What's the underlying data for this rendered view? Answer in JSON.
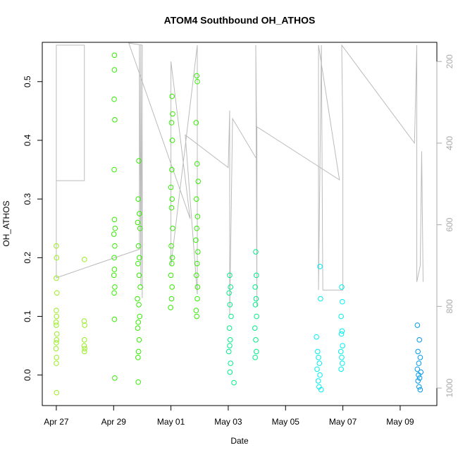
{
  "chart_data": {
    "type": "scatter",
    "title": "ATOM4 Southbound OH_ATHOS",
    "x_label": "Date",
    "y_label": "OH_ATHOS",
    "xlim": [
      -0.49,
      13.28
    ],
    "xticks": [
      {
        "value": 0,
        "label": "Apr 27"
      },
      {
        "value": 2,
        "label": "Apr 29"
      },
      {
        "value": 4,
        "label": "May 01"
      },
      {
        "value": 6,
        "label": "May 03"
      },
      {
        "value": 8,
        "label": "May 05"
      },
      {
        "value": 10,
        "label": "May 07"
      },
      {
        "value": 12,
        "label": "May 09"
      }
    ],
    "ylim": [
      -0.052,
      0.567
    ],
    "yticks": [
      {
        "value": 0,
        "label": "0.0"
      },
      0.1,
      0.2,
      0.3,
      0.4,
      0.5
    ],
    "y2lim": [
      1043,
      153
    ],
    "y2ticks": [
      200,
      400,
      600,
      800,
      1000
    ],
    "series": [
      {
        "color": "#99ee22",
        "x": [
          0,
          0.01,
          0,
          0.02,
          0,
          0.01,
          -0.01,
          0,
          0.02,
          0.01,
          0,
          -0.01,
          0.01,
          0,
          0.01,
          0.98,
          0.97,
          0.99,
          0.98,
          0.97,
          0.99,
          0.98
        ],
        "values": [
          0.22,
          0.2,
          0.165,
          0.14,
          0.11,
          0.1,
          0.09,
          0.085,
          0.07,
          0.06,
          0.055,
          0.045,
          0.03,
          0.02,
          -0.03,
          0.197,
          0.092,
          0.085,
          0.06,
          0.05,
          0.045,
          0.04
        ]
      },
      {
        "color": "#33ee00",
        "x": [
          2.03,
          2.03,
          2.02,
          2.04,
          2.02,
          2.03,
          2.05,
          2.01,
          2.04,
          2.02,
          2.03,
          2.01,
          2.04,
          2.02,
          2.03,
          2.04,
          2.88,
          2.86,
          2.9,
          2.84,
          2.92,
          2.87,
          2.9,
          2.85,
          2.89,
          2.93,
          2.83,
          2.88,
          2.91,
          2.86,
          2.84,
          2.89,
          2.87,
          2.85,
          2.86,
          4.04,
          4.06,
          4.02,
          4.05,
          4.03,
          4.0,
          4.04,
          4.02,
          4.06,
          4.01,
          4.05,
          4.03,
          4.0,
          4.04,
          4.02,
          3.99,
          4.9,
          4.92,
          4.88,
          4.91,
          4.95,
          4.89,
          4.93,
          4.9,
          4.87,
          4.94,
          4.91,
          4.89,
          4.93,
          4.92,
          4.88,
          4.9
        ],
        "values": [
          0.545,
          0.52,
          0.47,
          0.435,
          0.35,
          0.265,
          0.25,
          0.24,
          0.22,
          0.2,
          0.18,
          0.17,
          0.15,
          0.14,
          0.095,
          -0.005,
          0.365,
          0.3,
          0.275,
          0.26,
          0.25,
          0.22,
          0.2,
          0.19,
          0.17,
          0.15,
          0.13,
          0.12,
          0.1,
          0.09,
          0.08,
          0.06,
          0.04,
          0.03,
          -0.012,
          0.475,
          0.445,
          0.43,
          0.4,
          0.35,
          0.32,
          0.3,
          0.285,
          0.25,
          0.22,
          0.2,
          0.19,
          0.17,
          0.15,
          0.13,
          0.115,
          0.51,
          0.5,
          0.43,
          0.36,
          0.33,
          0.3,
          0.27,
          0.25,
          0.23,
          0.21,
          0.19,
          0.17,
          0.15,
          0.13,
          0.11,
          0.1
        ]
      },
      {
        "color": "#00ee88",
        "x": [
          6.05,
          6.08,
          6.03,
          6.06,
          6.1,
          6.04,
          6.07,
          6.05,
          6.02,
          6.08,
          6.06,
          6.2,
          6.96,
          6.98,
          6.94,
          6.97,
          6.95,
          6.99,
          6.93,
          6.96,
          6.98,
          6.94
        ],
        "values": [
          0.17,
          0.15,
          0.14,
          0.12,
          0.1,
          0.08,
          0.06,
          0.05,
          0.04,
          0.02,
          0.005,
          -0.013,
          0.21,
          0.17,
          0.15,
          0.13,
          0.12,
          0.1,
          0.08,
          0.06,
          0.04,
          0.03
        ]
      },
      {
        "color": "#00eeee",
        "x": [
          9.2,
          9.22,
          9.08,
          9.12,
          9.15,
          9.18,
          9.1,
          9.2,
          9.14,
          9.17,
          9.24,
          9.96,
          9.98,
          9.94,
          9.97,
          9.95,
          9.99,
          9.93,
          9.96,
          9.98,
          9.94
        ],
        "values": [
          0.185,
          0.13,
          0.065,
          0.04,
          0.03,
          0.02,
          0.01,
          0.0,
          -0.01,
          -0.02,
          -0.025,
          0.15,
          0.125,
          0.1,
          0.075,
          0.07,
          0.05,
          0.04,
          0.03,
          0.02,
          0.01
        ]
      },
      {
        "color": "#0099ee",
        "x": [
          12.6,
          12.67,
          12.62,
          12.7,
          12.65,
          12.6,
          12.72,
          12.64,
          12.68,
          12.62,
          12.66,
          12.7
        ],
        "values": [
          0.085,
          0.06,
          0.04,
          0.03,
          0.02,
          0.01,
          0.005,
          0.0,
          -0.005,
          -0.01,
          -0.02,
          -0.025
        ]
      },
      {
        "color": "#bbbbbb",
        "type": "line",
        "axis": "y2",
        "x": [
          0,
          0,
          0.98,
          0.98,
          0,
          0,
          2.9,
          2.9,
          2.95,
          2.95,
          3.0,
          3.0,
          2.53,
          4.67,
          4.0,
          4.0,
          4.92,
          4.92,
          4.5,
          6.0,
          6.05,
          6.05,
          6.15,
          7.0,
          6.96,
          7.0,
          7.0,
          9.88,
          9.15,
          9.15,
          9.25,
          9.3,
          10.0,
          10.0,
          9.96,
          12.5,
          12.58,
          12.58,
          12.7,
          12.75,
          12.8
        ],
        "values": [
          730,
          160,
          160,
          492,
          492,
          730,
          660,
          160,
          750,
          160,
          780,
          160,
          155,
          585,
          200,
          700,
          160,
          770,
          380,
          460,
          320,
          820,
          340,
          440,
          160,
          800,
          360,
          490,
          160,
          760,
          160,
          760,
          760,
          380,
          160,
          400,
          160,
          740,
          700,
          420,
          740
        ]
      }
    ]
  }
}
